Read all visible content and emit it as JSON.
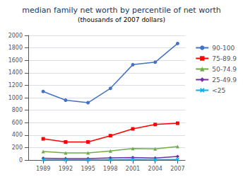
{
  "chart_data": {
    "type": "line",
    "title": "median family net worth by percentile of net worth",
    "subtitle": "(thousands of 2007 dollars)",
    "x": [
      1989,
      1992,
      1995,
      1998,
      2001,
      2004,
      2007
    ],
    "xlim": [
      1987,
      2008
    ],
    "xticks": [
      1989,
      1992,
      1995,
      1998,
      2001,
      2004,
      2007
    ],
    "ylim": [
      0,
      2000
    ],
    "yticks": [
      0,
      200,
      400,
      600,
      800,
      1000,
      1200,
      1400,
      1600,
      1800,
      2000
    ],
    "grid": true,
    "legend": "right",
    "series": [
      {
        "name": "90-100",
        "color": "#4472C4",
        "marker": "circle",
        "values": [
          1100,
          960,
          920,
          1150,
          1530,
          1570,
          1870
        ]
      },
      {
        "name": "75-89.9",
        "color": "#FF0000",
        "marker": "square",
        "values": [
          340,
          290,
          290,
          390,
          500,
          570,
          590
        ]
      },
      {
        "name": "50-74.9",
        "color": "#70AD47",
        "marker": "triangle",
        "values": [
          135,
          115,
          115,
          145,
          185,
          180,
          215
        ]
      },
      {
        "name": "25-49.9",
        "color": "#7030A0",
        "marker": "diamond",
        "values": [
          28,
          22,
          23,
          35,
          40,
          32,
          56
        ]
      },
      {
        "name": "<25",
        "color": "#00B0F0",
        "marker": "x",
        "values": [
          5,
          3,
          4,
          7,
          8,
          6,
          9
        ]
      }
    ]
  }
}
